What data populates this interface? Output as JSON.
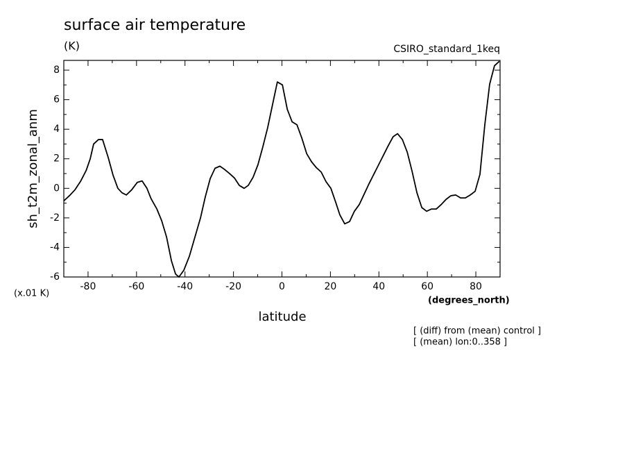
{
  "chart_data": {
    "type": "line",
    "title": "surface air temperature",
    "subtitle": "(K)",
    "dataset": "CSIRO_standard_1keq",
    "ylabel": "sh_t2m_zonal_anm",
    "yunits": "(x.01 K)",
    "xlabel": "latitude",
    "xunits": "(degrees_north)",
    "notes": [
      "[ (diff) from (mean) control ]",
      "[ (mean) lon:0..358 ]"
    ],
    "xlim": [
      -90,
      90
    ],
    "ylim": [
      -6,
      8.66
    ],
    "xticks": [
      -80,
      -60,
      -40,
      -20,
      0,
      20,
      40,
      60,
      80
    ],
    "yticks": [
      -6,
      -4,
      -2,
      0,
      2,
      4,
      6,
      8
    ],
    "xminorticks": [
      -90,
      -70,
      -50,
      -30,
      -10,
      10,
      30,
      50,
      70,
      90
    ],
    "yminorticks": [
      -5,
      -3,
      -1,
      1,
      3,
      5,
      7
    ],
    "series": [
      {
        "color": "#000000",
        "x": [
          -90,
          -87.7,
          -85.4,
          -83.1,
          -80.8,
          -79.1,
          -77.7,
          -75.7,
          -74,
          -71.7,
          -69.7,
          -67.7,
          -66,
          -64.2,
          -62,
          -59.7,
          -57.7,
          -55.7,
          -54,
          -51.6,
          -49.6,
          -47.6,
          -45.6,
          -43.9,
          -42.5,
          -40.5,
          -38.2,
          -35.9,
          -33.6,
          -31.6,
          -29.6,
          -27.6,
          -25.6,
          -23.6,
          -21.6,
          -19.6,
          -17.6,
          -15.6,
          -13.9,
          -11.9,
          -9.9,
          -7.9,
          -5.9,
          -3.9,
          -1.9,
          0.2,
          2.2,
          4.2,
          6.2,
          8.2,
          10.2,
          12.2,
          14.2,
          16.2,
          18.2,
          20.2,
          22.2,
          23.9,
          25.9,
          27.9,
          29.9,
          31.9,
          33.9,
          35.9,
          37.9,
          39.9,
          41.9,
          43.9,
          45.9,
          47.7,
          49.7,
          51.7,
          53.7,
          55.7,
          57.7,
          59.7,
          61.7,
          63.7,
          65.7,
          67.7,
          69.7,
          71.7,
          73.7,
          75.7,
          77.7,
          79.7,
          81.7,
          83.7,
          85.7,
          87.7,
          89.7
        ],
        "values": [
          -0.85,
          -0.5,
          -0.1,
          0.47,
          1.2,
          2.0,
          3.0,
          3.3,
          3.3,
          2.1,
          0.9,
          0,
          -0.3,
          -0.45,
          -0.1,
          0.4,
          0.5,
          0,
          -0.7,
          -1.4,
          -2.2,
          -3.3,
          -4.9,
          -5.8,
          -6.0,
          -5.55,
          -4.6,
          -3.3,
          -2.0,
          -0.56,
          0.66,
          1.36,
          1.5,
          1.27,
          1.0,
          0.7,
          0.2,
          0,
          0.2,
          0.75,
          1.6,
          2.8,
          4.1,
          5.65,
          7.2,
          7.0,
          5.35,
          4.5,
          4.3,
          3.4,
          2.35,
          1.8,
          1.4,
          1.1,
          0.45,
          0,
          -0.95,
          -1.8,
          -2.4,
          -2.25,
          -1.55,
          -1.1,
          -0.4,
          0.3,
          0.95,
          1.6,
          2.25,
          2.9,
          3.5,
          3.7,
          3.3,
          2.45,
          1.15,
          -0.3,
          -1.3,
          -1.55,
          -1.4,
          -1.4,
          -1.1,
          -0.75,
          -0.5,
          -0.45,
          -0.65,
          -0.65,
          -0.45,
          -0.2,
          0.95,
          4.3,
          7.05,
          8.3,
          8.6
        ]
      }
    ]
  }
}
